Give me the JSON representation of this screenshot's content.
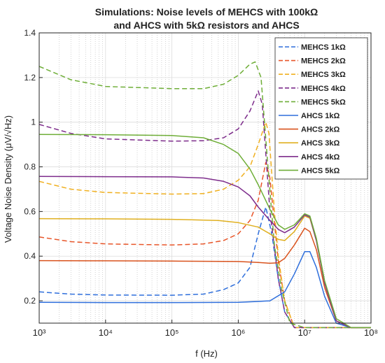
{
  "chart_data": {
    "type": "line",
    "title_lines": [
      "Simulations: Noise levels of MEHCS with 100kΩ",
      "and AHCS with 5kΩ resistors and AHCS"
    ],
    "xlabel": "f (Hz)",
    "ylabel": "Voltage Noise Density (μV/√Hz)",
    "x_scale": "log",
    "xlim": [
      1000,
      100000000
    ],
    "ylim": [
      0.1,
      1.4
    ],
    "x_ticks": [
      1000,
      10000,
      100000,
      1000000,
      10000000,
      100000000
    ],
    "x_tick_labels": [
      "10³",
      "10⁴",
      "10⁵",
      "10⁶",
      "10⁷",
      "10⁸"
    ],
    "y_ticks": [
      0.2,
      0.4,
      0.6,
      0.8,
      1.0,
      1.2,
      1.4
    ],
    "y_tick_labels": [
      "0.2",
      "0.4",
      "0.6",
      "0.8",
      "1",
      "1.2",
      "1.4"
    ],
    "grid": true,
    "legend_position": "top-right",
    "series": [
      {
        "name": "MEHCS 1kΩ",
        "style": "dashed",
        "color": "#2f6fdc",
        "points": [
          [
            1000,
            0.24
          ],
          [
            3000,
            0.23
          ],
          [
            10000,
            0.226
          ],
          [
            100000,
            0.225
          ],
          [
            300000,
            0.23
          ],
          [
            600000,
            0.25
          ],
          [
            1000000,
            0.28
          ],
          [
            1500000,
            0.35
          ],
          [
            2000000,
            0.5
          ],
          [
            2600000,
            0.62
          ],
          [
            3200000,
            0.5
          ],
          [
            4000000,
            0.3
          ],
          [
            5000000,
            0.15
          ],
          [
            7000000,
            0.07
          ],
          [
            10000000,
            0.04
          ],
          [
            20000000,
            0.025
          ],
          [
            50000000,
            0.02
          ],
          [
            100000000,
            0.01
          ]
        ]
      },
      {
        "name": "MEHCS 2kΩ",
        "style": "dashed",
        "color": "#e8562a",
        "points": [
          [
            1000,
            0.486
          ],
          [
            3000,
            0.465
          ],
          [
            10000,
            0.455
          ],
          [
            100000,
            0.45
          ],
          [
            300000,
            0.455
          ],
          [
            600000,
            0.47
          ],
          [
            1000000,
            0.5
          ],
          [
            1500000,
            0.56
          ],
          [
            2000000,
            0.65
          ],
          [
            2600000,
            0.82
          ],
          [
            3000000,
            0.75
          ],
          [
            3500000,
            0.55
          ],
          [
            4000000,
            0.38
          ],
          [
            5000000,
            0.2
          ],
          [
            7000000,
            0.08
          ],
          [
            10000000,
            0.05
          ],
          [
            20000000,
            0.03
          ],
          [
            50000000,
            0.02
          ],
          [
            100000000,
            0.01
          ]
        ]
      },
      {
        "name": "MEHCS 3kΩ",
        "style": "dashed",
        "color": "#f0b020",
        "points": [
          [
            1000,
            0.735
          ],
          [
            3000,
            0.7
          ],
          [
            10000,
            0.685
          ],
          [
            100000,
            0.678
          ],
          [
            300000,
            0.68
          ],
          [
            600000,
            0.7
          ],
          [
            1000000,
            0.74
          ],
          [
            1500000,
            0.8
          ],
          [
            2000000,
            0.9
          ],
          [
            2600000,
            1.0
          ],
          [
            2900000,
            0.95
          ],
          [
            3500000,
            0.6
          ],
          [
            4000000,
            0.4
          ],
          [
            5000000,
            0.2
          ],
          [
            7000000,
            0.08
          ],
          [
            10000000,
            0.05
          ],
          [
            20000000,
            0.03
          ],
          [
            50000000,
            0.02
          ],
          [
            100000000,
            0.01
          ]
        ]
      },
      {
        "name": "MEHCS 4kΩ",
        "style": "dashed",
        "color": "#7e2d8c",
        "points": [
          [
            1000,
            0.99
          ],
          [
            3000,
            0.95
          ],
          [
            10000,
            0.925
          ],
          [
            100000,
            0.915
          ],
          [
            300000,
            0.917
          ],
          [
            600000,
            0.93
          ],
          [
            1000000,
            0.97
          ],
          [
            1500000,
            1.05
          ],
          [
            2000000,
            1.14
          ],
          [
            2300000,
            1.08
          ],
          [
            3000000,
            0.6
          ],
          [
            4000000,
            0.3
          ],
          [
            5000000,
            0.15
          ],
          [
            7000000,
            0.07
          ],
          [
            10000000,
            0.045
          ],
          [
            20000000,
            0.03
          ],
          [
            50000000,
            0.02
          ],
          [
            100000000,
            0.01
          ]
        ]
      },
      {
        "name": "MEHCS 5kΩ",
        "style": "dashed",
        "color": "#6fae38",
        "points": [
          [
            1000,
            1.25
          ],
          [
            3000,
            1.19
          ],
          [
            10000,
            1.16
          ],
          [
            100000,
            1.15
          ],
          [
            300000,
            1.15
          ],
          [
            600000,
            1.17
          ],
          [
            1000000,
            1.21
          ],
          [
            1500000,
            1.26
          ],
          [
            1800000,
            1.27
          ],
          [
            2200000,
            1.2
          ],
          [
            2800000,
            0.8
          ],
          [
            3500000,
            0.45
          ],
          [
            4500000,
            0.25
          ],
          [
            6000000,
            0.1
          ],
          [
            10000000,
            0.05
          ],
          [
            20000000,
            0.03
          ],
          [
            50000000,
            0.02
          ],
          [
            100000000,
            0.01
          ]
        ]
      },
      {
        "name": "AHCS 1kΩ",
        "style": "solid",
        "color": "#2f6fdc",
        "points": [
          [
            1000,
            0.193
          ],
          [
            10000,
            0.192
          ],
          [
            100000,
            0.192
          ],
          [
            1000000,
            0.193
          ],
          [
            2000000,
            0.197
          ],
          [
            3000000,
            0.2
          ],
          [
            5000000,
            0.24
          ],
          [
            7000000,
            0.32
          ],
          [
            10000000,
            0.42
          ],
          [
            12000000,
            0.42
          ],
          [
            15000000,
            0.35
          ],
          [
            20000000,
            0.22
          ],
          [
            30000000,
            0.1
          ],
          [
            50000000,
            0.03
          ],
          [
            100000000,
            0.01
          ]
        ]
      },
      {
        "name": "AHCS 2kΩ",
        "style": "solid",
        "color": "#d9531e",
        "points": [
          [
            1000,
            0.38
          ],
          [
            10000,
            0.379
          ],
          [
            100000,
            0.378
          ],
          [
            1000000,
            0.376
          ],
          [
            2000000,
            0.372
          ],
          [
            3000000,
            0.368
          ],
          [
            4000000,
            0.37
          ],
          [
            5000000,
            0.39
          ],
          [
            7000000,
            0.45
          ],
          [
            10000000,
            0.525
          ],
          [
            12000000,
            0.51
          ],
          [
            15000000,
            0.43
          ],
          [
            20000000,
            0.26
          ],
          [
            30000000,
            0.11
          ],
          [
            50000000,
            0.03
          ],
          [
            100000000,
            0.01
          ]
        ]
      },
      {
        "name": "AHCS 3kΩ",
        "style": "solid",
        "color": "#e0b020",
        "points": [
          [
            1000,
            0.568
          ],
          [
            10000,
            0.567
          ],
          [
            100000,
            0.565
          ],
          [
            500000,
            0.56
          ],
          [
            1000000,
            0.55
          ],
          [
            2000000,
            0.53
          ],
          [
            3000000,
            0.5
          ],
          [
            4000000,
            0.475
          ],
          [
            5000000,
            0.47
          ],
          [
            7000000,
            0.51
          ],
          [
            10000000,
            0.58
          ],
          [
            12000000,
            0.57
          ],
          [
            15000000,
            0.47
          ],
          [
            20000000,
            0.28
          ],
          [
            30000000,
            0.11
          ],
          [
            50000000,
            0.03
          ],
          [
            100000000,
            0.01
          ]
        ]
      },
      {
        "name": "AHCS 4kΩ",
        "style": "solid",
        "color": "#7e2d8c",
        "points": [
          [
            1000,
            0.757
          ],
          [
            10000,
            0.756
          ],
          [
            100000,
            0.755
          ],
          [
            300000,
            0.75
          ],
          [
            600000,
            0.735
          ],
          [
            1000000,
            0.71
          ],
          [
            1500000,
            0.67
          ],
          [
            2000000,
            0.62
          ],
          [
            3000000,
            0.56
          ],
          [
            4000000,
            0.52
          ],
          [
            5000000,
            0.505
          ],
          [
            7000000,
            0.53
          ],
          [
            10000000,
            0.585
          ],
          [
            12000000,
            0.575
          ],
          [
            15000000,
            0.47
          ],
          [
            20000000,
            0.28
          ],
          [
            30000000,
            0.11
          ],
          [
            50000000,
            0.03
          ],
          [
            100000000,
            0.01
          ]
        ]
      },
      {
        "name": "AHCS 5kΩ",
        "style": "solid",
        "color": "#6fae38",
        "points": [
          [
            1000,
            0.945
          ],
          [
            10000,
            0.944
          ],
          [
            100000,
            0.94
          ],
          [
            300000,
            0.93
          ],
          [
            600000,
            0.9
          ],
          [
            1000000,
            0.86
          ],
          [
            1500000,
            0.79
          ],
          [
            2000000,
            0.72
          ],
          [
            3000000,
            0.61
          ],
          [
            4000000,
            0.54
          ],
          [
            5000000,
            0.52
          ],
          [
            7000000,
            0.54
          ],
          [
            10000000,
            0.59
          ],
          [
            12000000,
            0.58
          ],
          [
            15000000,
            0.48
          ],
          [
            20000000,
            0.29
          ],
          [
            30000000,
            0.12
          ],
          [
            50000000,
            0.03
          ],
          [
            100000000,
            0.01
          ]
        ]
      }
    ]
  }
}
